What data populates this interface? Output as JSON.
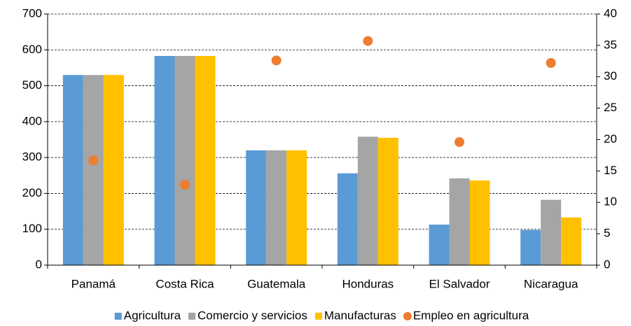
{
  "chart_data": {
    "type": "bar",
    "categories": [
      "Panamá",
      "Costa Rica",
      "Guatemala",
      "Honduras",
      "El Salvador",
      "Nicaragua"
    ],
    "series": [
      {
        "name": "Agricultura",
        "color": "#5b9bd5",
        "values": [
          530,
          583,
          320,
          256,
          113,
          98
        ]
      },
      {
        "name": "Comercio y servicios",
        "color": "#a5a5a5",
        "values": [
          530,
          583,
          320,
          358,
          242,
          182
        ]
      },
      {
        "name": "Manufacturas",
        "color": "#ffc000",
        "values": [
          530,
          583,
          320,
          355,
          236,
          133
        ]
      },
      {
        "name": "Empleo en agricultura",
        "color": "#ed7d31",
        "type": "scatter",
        "axis": "y2",
        "values": [
          16.7,
          12.8,
          32.6,
          35.7,
          19.6,
          32.2
        ]
      }
    ],
    "ylim": [
      0,
      700
    ],
    "yticks": [
      0,
      100,
      200,
      300,
      400,
      500,
      600,
      700
    ],
    "y2lim": [
      0,
      40
    ],
    "y2ticks": [
      0,
      5,
      10,
      15,
      20,
      25,
      30,
      35,
      40
    ],
    "grid": true,
    "legend": "bottom"
  }
}
